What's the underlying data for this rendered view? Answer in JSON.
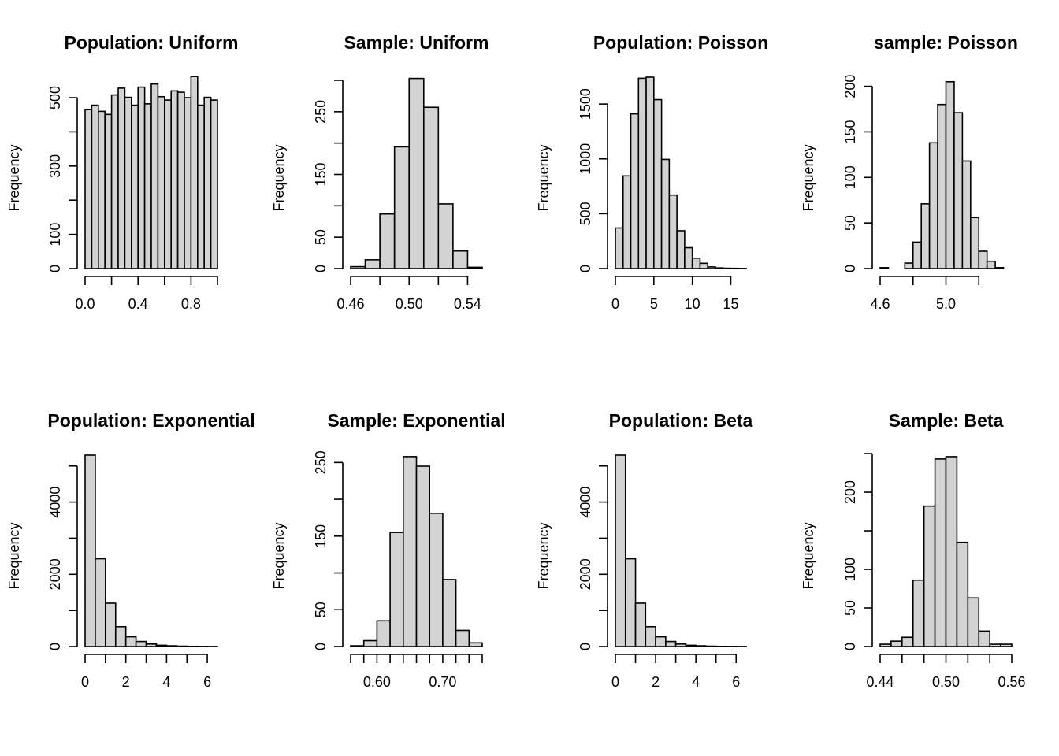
{
  "chart_data": [
    {
      "type": "bar",
      "title": "Population: Uniform",
      "ylabel": "Frequency",
      "bar_color": "#d3d3d3",
      "edge_color": "#000000",
      "breaks": [
        0,
        0.05,
        0.1,
        0.15,
        0.2,
        0.25,
        0.3,
        0.35,
        0.4,
        0.45,
        0.5,
        0.55,
        0.6,
        0.65,
        0.7,
        0.75,
        0.8,
        0.85,
        0.9,
        0.95,
        1.0
      ],
      "values": [
        465,
        478,
        460,
        451,
        508,
        528,
        501,
        478,
        531,
        482,
        540,
        503,
        493,
        520,
        516,
        500,
        562,
        478,
        501,
        493
      ],
      "xlim": [
        0,
        1
      ],
      "xticks": [
        0.0,
        0.2,
        0.4,
        0.6,
        0.8,
        1.0
      ],
      "xtick_labels": [
        "0.0",
        "",
        "0.4",
        "",
        "0.8",
        ""
      ],
      "yticks": [
        0,
        100,
        200,
        300,
        400,
        500
      ],
      "ytick_labels": [
        "0",
        "100",
        "",
        "300",
        "",
        "500"
      ]
    },
    {
      "type": "bar",
      "title": "Sample: Uniform",
      "ylabel": "Frequency",
      "bar_color": "#d3d3d3",
      "edge_color": "#000000",
      "breaks": [
        0.46,
        0.47,
        0.48,
        0.49,
        0.5,
        0.51,
        0.52,
        0.53,
        0.54,
        0.55
      ],
      "values": [
        3,
        14,
        87,
        194,
        303,
        257,
        103,
        28,
        2
      ],
      "xlim": [
        0.46,
        0.55
      ],
      "xticks": [
        0.46,
        0.48,
        0.5,
        0.52,
        0.54
      ],
      "xtick_labels": [
        "0.46",
        "",
        "0.50",
        "",
        "0.54"
      ],
      "yticks": [
        0,
        50,
        100,
        150,
        200,
        250,
        300
      ],
      "ytick_labels": [
        "0",
        "50",
        "",
        "150",
        "",
        "250",
        ""
      ]
    },
    {
      "type": "bar",
      "title": "Population: Poisson",
      "ylabel": "Frequency",
      "bar_color": "#d3d3d3",
      "edge_color": "#000000",
      "breaks": [
        0,
        1,
        2,
        3,
        4,
        5,
        6,
        7,
        8,
        9,
        10,
        11,
        12,
        13,
        14,
        15,
        16,
        17
      ],
      "values": [
        370,
        845,
        1410,
        1735,
        1745,
        1540,
        995,
        670,
        345,
        190,
        95,
        48,
        15,
        6,
        3,
        2,
        1
      ],
      "xlim": [
        0,
        17
      ],
      "xticks": [
        0,
        5,
        10,
        15
      ],
      "xtick_labels": [
        "0",
        "5",
        "10",
        "15"
      ],
      "yticks": [
        0,
        500,
        1000,
        1500
      ],
      "ytick_labels": [
        "0",
        "500",
        "1000",
        "1500"
      ]
    },
    {
      "type": "bar",
      "title": "sample: Poisson",
      "ylabel": "Frequency",
      "bar_color": "#d3d3d3",
      "edge_color": "#000000",
      "breaks": [
        4.6,
        4.65,
        4.7,
        4.75,
        4.8,
        4.85,
        4.9,
        4.95,
        5.0,
        5.05,
        5.1,
        5.15,
        5.2,
        5.25,
        5.3,
        5.35,
        5.4
      ],
      "values": [
        1,
        0,
        0,
        6,
        29,
        71,
        138,
        180,
        205,
        171,
        118,
        56,
        19,
        8,
        1,
        0
      ],
      "xlim": [
        4.6,
        5.4
      ],
      "xticks": [
        4.6,
        4.8,
        5.0,
        5.2
      ],
      "xtick_labels": [
        "4.6",
        "",
        "5.0",
        ""
      ],
      "yticks": [
        0,
        50,
        100,
        150,
        200
      ],
      "ytick_labels": [
        "0",
        "50",
        "100",
        "150",
        "200"
      ]
    },
    {
      "type": "bar",
      "title": "Population: Exponential",
      "ylabel": "Frequency",
      "bar_color": "#d3d3d3",
      "edge_color": "#000000",
      "breaks": [
        0,
        0.5,
        1,
        1.5,
        2,
        2.5,
        3,
        3.5,
        4,
        4.5,
        5,
        5.5,
        6,
        6.5
      ],
      "values": [
        5300,
        2430,
        1200,
        550,
        270,
        140,
        70,
        35,
        20,
        10,
        5,
        3,
        2
      ],
      "xlim": [
        0,
        6.5
      ],
      "xticks": [
        0,
        1,
        2,
        3,
        4,
        5,
        6
      ],
      "xtick_labels": [
        "0",
        "",
        "2",
        "",
        "4",
        "",
        "6"
      ],
      "yticks": [
        0,
        1000,
        2000,
        3000,
        4000,
        5000
      ],
      "ytick_labels": [
        "0",
        "",
        "2000",
        "",
        "4000",
        ""
      ]
    },
    {
      "type": "bar",
      "title": "Sample: Exponential",
      "ylabel": "Frequency",
      "bar_color": "#d3d3d3",
      "edge_color": "#000000",
      "breaks": [
        0.56,
        0.58,
        0.6,
        0.62,
        0.64,
        0.66,
        0.68,
        0.7,
        0.72,
        0.74,
        0.76
      ],
      "values": [
        1,
        8,
        35,
        155,
        258,
        245,
        181,
        91,
        22,
        5
      ],
      "xlim": [
        0.56,
        0.76
      ],
      "xticks": [
        0.56,
        0.58,
        0.6,
        0.62,
        0.64,
        0.66,
        0.68,
        0.7,
        0.72,
        0.74,
        0.76
      ],
      "xtick_labels": [
        "",
        "",
        "0.60",
        "",
        "",
        "",
        "",
        "0.70",
        "",
        "",
        ""
      ],
      "yticks": [
        0,
        50,
        100,
        150,
        200,
        250
      ],
      "ytick_labels": [
        "0",
        "50",
        "",
        "150",
        "",
        "250"
      ]
    },
    {
      "type": "bar",
      "title": "Population: Beta",
      "ylabel": "Frequency",
      "bar_color": "#d3d3d3",
      "edge_color": "#000000",
      "breaks": [
        0,
        0.5,
        1,
        1.5,
        2,
        2.5,
        3,
        3.5,
        4,
        4.5,
        5,
        5.5,
        6,
        6.5
      ],
      "values": [
        5300,
        2430,
        1200,
        550,
        270,
        140,
        70,
        35,
        20,
        10,
        5,
        3,
        2
      ],
      "xlim": [
        0,
        6.5
      ],
      "xticks": [
        0,
        1,
        2,
        3,
        4,
        5,
        6
      ],
      "xtick_labels": [
        "0",
        "",
        "2",
        "",
        "4",
        "",
        "6"
      ],
      "yticks": [
        0,
        1000,
        2000,
        3000,
        4000,
        5000
      ],
      "ytick_labels": [
        "0",
        "",
        "2000",
        "",
        "4000",
        ""
      ]
    },
    {
      "type": "bar",
      "title": "Sample: Beta",
      "ylabel": "Frequency",
      "bar_color": "#d3d3d3",
      "edge_color": "#000000",
      "breaks": [
        0.44,
        0.45,
        0.46,
        0.47,
        0.48,
        0.49,
        0.5,
        0.51,
        0.52,
        0.53,
        0.54,
        0.55,
        0.56
      ],
      "values": [
        3,
        7,
        12,
        86,
        182,
        243,
        246,
        135,
        63,
        20,
        3,
        3
      ],
      "xlim": [
        0.44,
        0.56
      ],
      "xticks": [
        0.44,
        0.46,
        0.48,
        0.5,
        0.52,
        0.54,
        0.56
      ],
      "xtick_labels": [
        "0.44",
        "",
        "",
        "0.50",
        "",
        "",
        "0.56"
      ],
      "yticks": [
        0,
        50,
        100,
        150,
        200,
        250
      ],
      "ytick_labels": [
        "0",
        "50",
        "100",
        "",
        "200",
        ""
      ]
    }
  ]
}
